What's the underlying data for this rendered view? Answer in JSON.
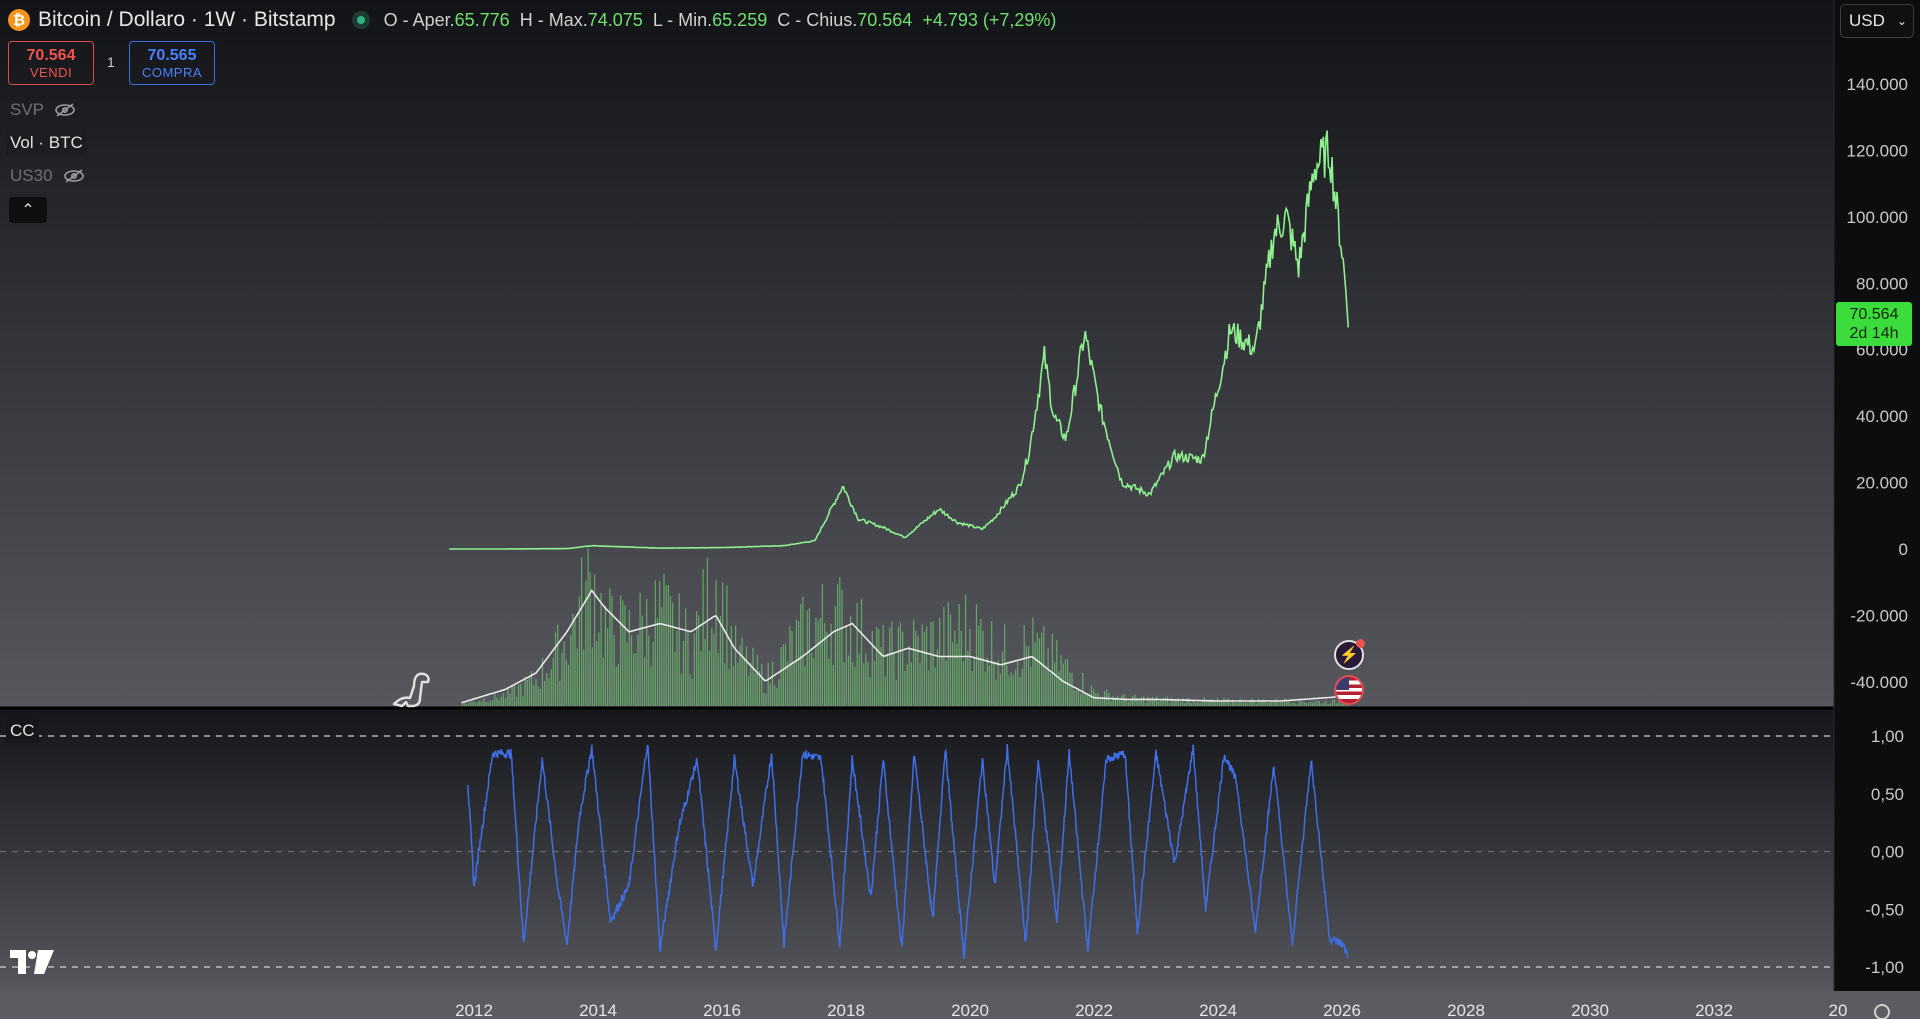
{
  "header": {
    "coin_symbol": "₿",
    "title": "Bitcoin / Dollaro · 1W · Bitstamp",
    "open_label": "O - Aper.",
    "open_value": "65.776",
    "high_label": "H - Max.",
    "high_value": "74.075",
    "low_label": "L - Min.",
    "low_value": "65.259",
    "close_label": "C - Chius.",
    "close_value": "70.564",
    "change": "+4.793 (+7,29%)"
  },
  "trade": {
    "sell_price": "70.564",
    "sell_label": "VENDI",
    "spread": "1",
    "buy_price": "70.565",
    "buy_label": "COMPRA"
  },
  "indicators": {
    "svp": "SVP",
    "vol": "Vol · BTC",
    "us30": "US30",
    "collapse": "⌃",
    "cc": "CC"
  },
  "currency": "USD",
  "last_price": {
    "value": "70.564",
    "countdown": "2d 14h"
  },
  "colors": {
    "price_line": "#8ef08e",
    "volume_bars": "#6fc56f",
    "volume_ma": "#e8e8e8",
    "oscillator": "#3f6fe8",
    "last_price_bg": "#3ddc3d"
  },
  "chart_data": [
    {
      "type": "line",
      "name": "Price (BTC/USD weekly)",
      "price_axis_ticks": [
        "140.000",
        "120.000",
        "100.000",
        "80.000",
        "60.000",
        "40.000",
        "20.000",
        "0",
        "-20.000",
        "-40.000"
      ],
      "ylim": [
        -47000,
        152000
      ],
      "x": [
        2011.6,
        2012.5,
        2013.5,
        2013.9,
        2014.5,
        2015.0,
        2016.0,
        2017.0,
        2017.5,
        2017.95,
        2018.2,
        2018.6,
        2018.95,
        2019.5,
        2019.8,
        2020.2,
        2020.4,
        2020.8,
        2020.95,
        2021.2,
        2021.35,
        2021.55,
        2021.85,
        2022.1,
        2022.45,
        2022.9,
        2023.3,
        2023.75,
        2024.2,
        2024.6,
        2024.9,
        2025.1,
        2025.3,
        2025.55,
        2025.8,
        2026.0,
        2026.1
      ],
      "values": [
        5,
        10,
        120,
        1000,
        600,
        250,
        430,
        1000,
        2500,
        19000,
        9000,
        6500,
        3500,
        12000,
        8000,
        6000,
        9500,
        19000,
        29000,
        58000,
        40000,
        33000,
        65000,
        42000,
        20000,
        16500,
        28000,
        27000,
        66000,
        60000,
        95000,
        100000,
        85000,
        115000,
        120000,
        90000,
        70564
      ]
    },
    {
      "type": "bar",
      "name": "Vol · BTC",
      "x": [
        2011.8,
        2012.5,
        2013.0,
        2013.5,
        2013.9,
        2014.1,
        2014.5,
        2015.0,
        2015.5,
        2015.9,
        2016.2,
        2016.7,
        2017.3,
        2017.8,
        2018.1,
        2018.6,
        2019.0,
        2019.5,
        2020.0,
        2020.5,
        2021.0,
        2021.5,
        2022.0,
        2022.5,
        2023.0,
        2024.0,
        2025.0,
        2026.1
      ],
      "values": [
        0.02,
        0.08,
        0.2,
        0.5,
        0.95,
        0.6,
        0.55,
        0.7,
        0.45,
        0.95,
        0.4,
        0.2,
        0.55,
        0.7,
        0.6,
        0.4,
        0.45,
        0.5,
        0.6,
        0.4,
        0.45,
        0.3,
        0.1,
        0.06,
        0.05,
        0.04,
        0.04,
        0.03
      ],
      "ma_values": [
        0.02,
        0.1,
        0.2,
        0.45,
        0.7,
        0.6,
        0.45,
        0.5,
        0.45,
        0.55,
        0.35,
        0.15,
        0.3,
        0.45,
        0.5,
        0.3,
        0.35,
        0.3,
        0.3,
        0.25,
        0.3,
        0.15,
        0.05,
        0.04,
        0.04,
        0.03,
        0.03,
        0.06
      ]
    },
    {
      "type": "line",
      "name": "CC",
      "yticks": [
        "1,00",
        "0,50",
        "0,00",
        "-0,50",
        "-1,00"
      ],
      "ylim": [
        -1.0,
        1.0
      ],
      "x": [
        2011.9,
        2012.0,
        2012.3,
        2012.6,
        2012.8,
        2013.1,
        2013.35,
        2013.5,
        2013.7,
        2013.9,
        2014.2,
        2014.5,
        2014.8,
        2015.0,
        2015.3,
        2015.6,
        2015.9,
        2016.2,
        2016.5,
        2016.8,
        2017.0,
        2017.3,
        2017.6,
        2017.9,
        2018.1,
        2018.4,
        2018.6,
        2018.9,
        2019.1,
        2019.4,
        2019.6,
        2019.9,
        2020.2,
        2020.4,
        2020.6,
        2020.9,
        2021.1,
        2021.4,
        2021.6,
        2021.9,
        2022.2,
        2022.5,
        2022.7,
        2023.0,
        2023.3,
        2023.6,
        2023.8,
        2024.1,
        2024.3,
        2024.6,
        2024.9,
        2025.2,
        2025.5,
        2025.8,
        2026.0,
        2026.1
      ],
      "values": [
        0.6,
        -0.3,
        0.85,
        0.85,
        -0.8,
        0.8,
        -0.3,
        -0.8,
        0.3,
        0.9,
        -0.6,
        -0.3,
        0.95,
        -0.85,
        0.2,
        0.8,
        -0.85,
        0.8,
        -0.3,
        0.85,
        -0.8,
        0.85,
        0.8,
        -0.8,
        0.8,
        -0.4,
        0.8,
        -0.85,
        0.85,
        -0.6,
        0.9,
        -0.9,
        0.8,
        -0.3,
        0.9,
        -0.8,
        0.8,
        -0.6,
        0.85,
        -0.85,
        0.8,
        0.85,
        -0.7,
        0.85,
        -0.1,
        0.9,
        -0.5,
        0.85,
        0.6,
        -0.7,
        0.75,
        -0.8,
        0.8,
        -0.75,
        -0.8,
        -0.9
      ]
    }
  ],
  "time_axis": [
    "2012",
    "2014",
    "2016",
    "2018",
    "2020",
    "2022",
    "2024",
    "2026",
    "2028",
    "2030",
    "2032",
    "20"
  ]
}
